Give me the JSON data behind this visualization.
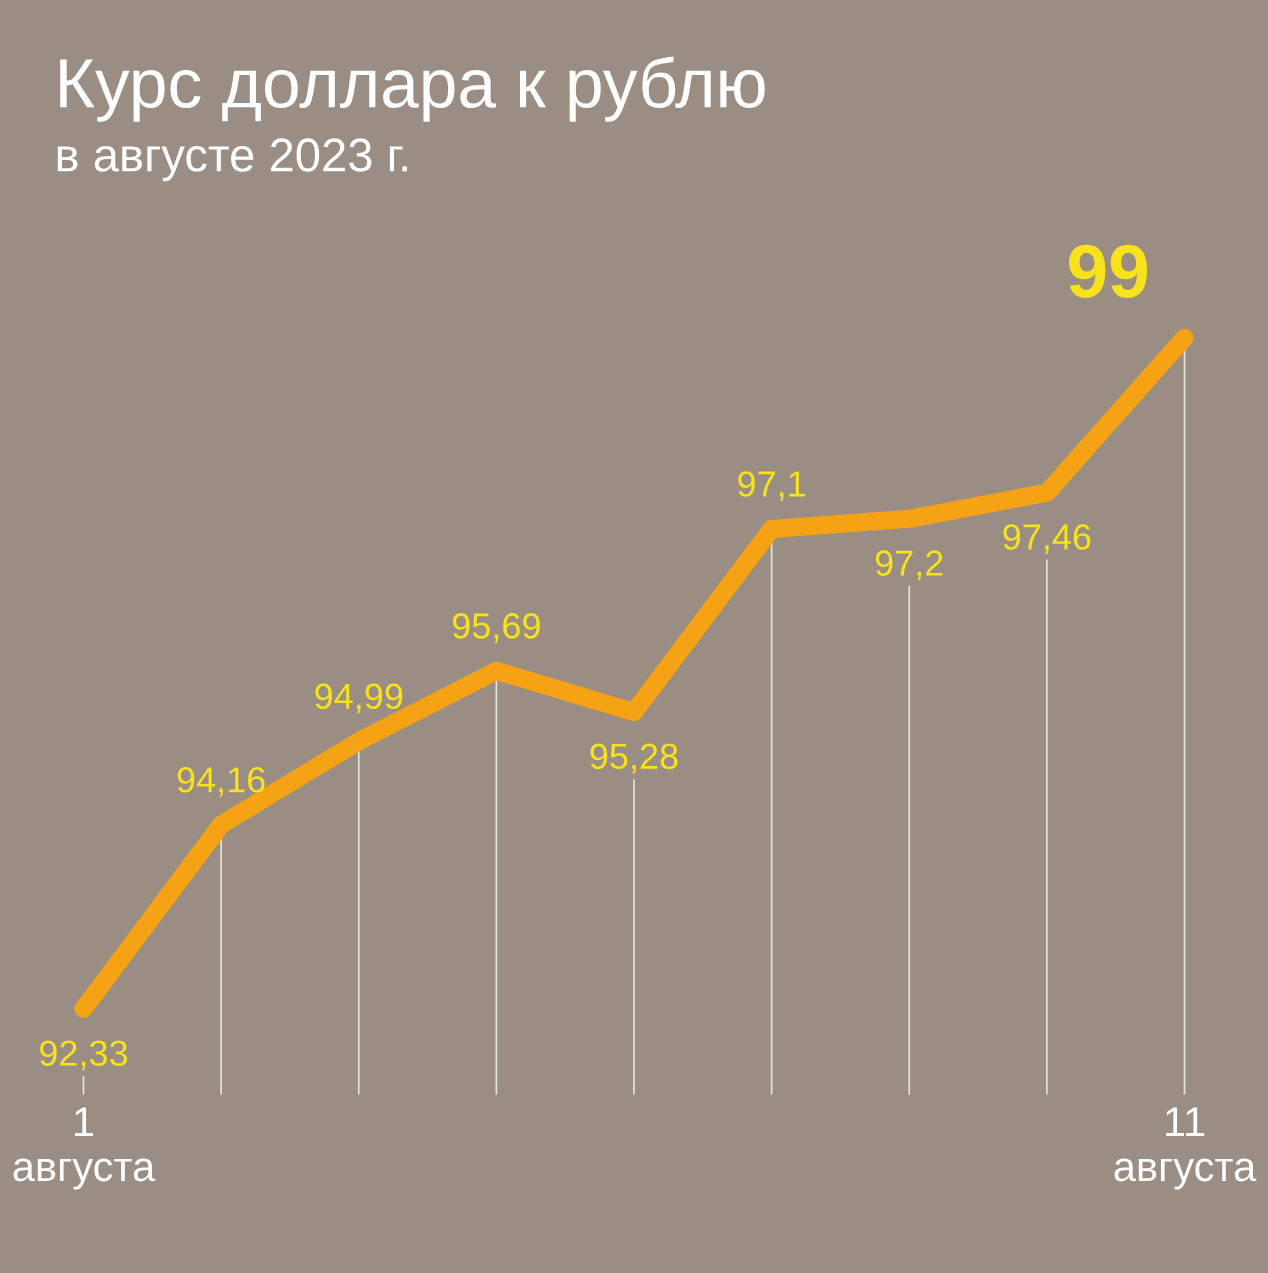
{
  "chart_data": {
    "type": "line",
    "title": "Курс доллара к рублю",
    "subtitle": "в августе 2023 г.",
    "categories": [
      "1\nавгуста",
      null,
      null,
      null,
      null,
      null,
      null,
      null,
      "11\nавгуста"
    ],
    "series": [
      {
        "color": "#f5a314",
        "values": [
          92.33,
          94.16,
          94.99,
          95.69,
          95.28,
          97.1,
          97.2,
          97.46,
          99
        ],
        "value_labels": [
          "92,33",
          "94,16",
          "94,99",
          "95,69",
          "95,28",
          "97,1",
          "97,2",
          "97,46",
          "99"
        ]
      }
    ],
    "grid": "x",
    "line_style": "solid"
  }
}
